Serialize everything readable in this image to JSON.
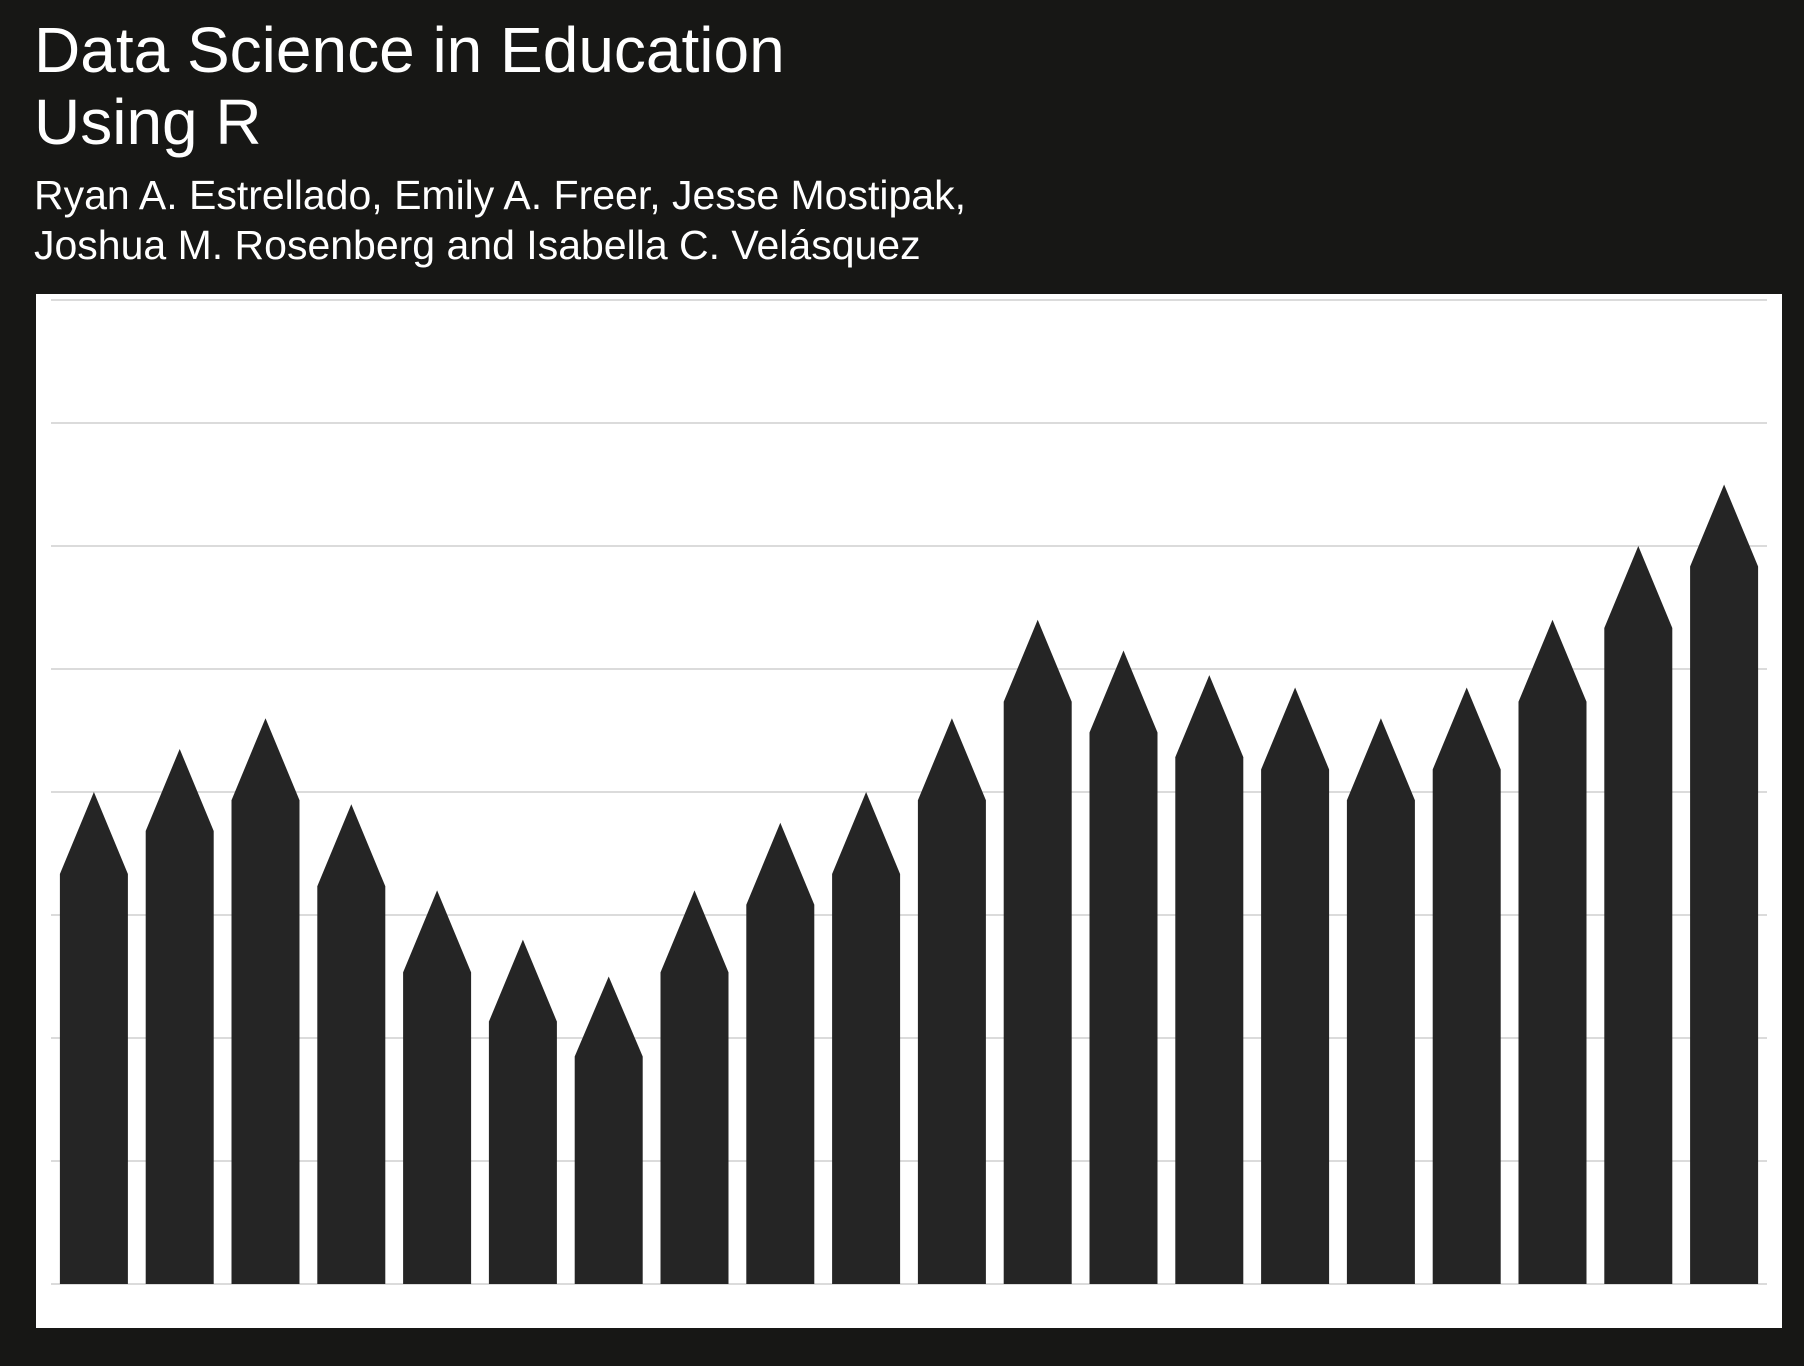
{
  "cover": {
    "title_lines": [
      "Data Science in Education",
      "Using R"
    ],
    "author_lines": [
      "Ryan A. Estrellado, Emily A. Freer, Jesse Mostipak,",
      "Joshua M. Rosenberg and Isabella C. Velásquez"
    ],
    "colors": {
      "background": "#171715",
      "text": "#ffffff",
      "panel": "#ffffff",
      "pencil": "#252525",
      "gridline": "#cfcfcf"
    }
  },
  "chart_data": {
    "type": "bar",
    "title": "",
    "xlabel": "",
    "ylabel": "",
    "grid": true,
    "ylim": [
      0,
      8
    ],
    "values": [
      4.0,
      4.35,
      4.6,
      3.9,
      3.2,
      2.8,
      2.5,
      3.2,
      3.75,
      4.0,
      4.6,
      5.4,
      5.15,
      4.95,
      4.85,
      4.6,
      4.85,
      5.4,
      6.0,
      6.5
    ]
  }
}
